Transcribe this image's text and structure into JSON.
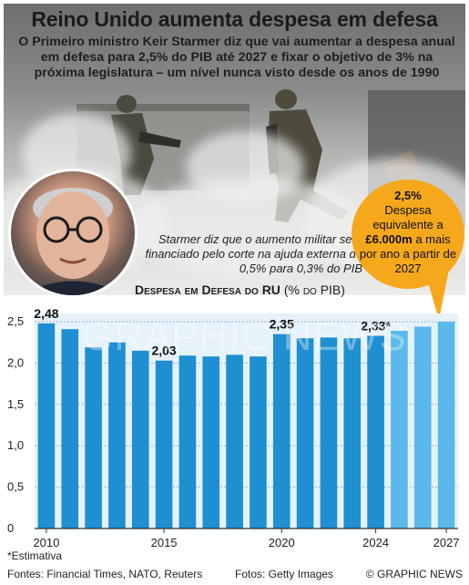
{
  "header": {
    "title": "Reino Unido aumenta despesa em defesa",
    "subtitle": "O Primeiro ministro Keir Starmer diz que vai aumentar a despesa anual em defesa para 2,5% do PIB até 2027 e fixar o objetivo de 3% na próxima legislatura – um nível nunca visto desde os anos de 1990"
  },
  "quote": "Starmer diz que o aumento militar será financiado pelo corte na ajuda externa de 0,5% para 0,3% do PIB",
  "bubble": {
    "line1": "2,5%",
    "line2": "Despesa equivalente a",
    "line3": "£6.000m",
    "line4": "a mais por ano a partir de 2027"
  },
  "chart_title": {
    "main": "Despesa em Defesa do RU",
    "unit": "(% do PIB)"
  },
  "watermark": "GRAPHIC NEWS",
  "colors": {
    "bar_actual": "#1e8fd0",
    "bar_future": "#5bb8ea",
    "bubble": "#f5a81c",
    "plot_bg": "#e6f2fa"
  },
  "chart_data": {
    "type": "bar",
    "title": "Despesa em Defesa do RU (% do PIB)",
    "x": [
      2010,
      2011,
      2012,
      2013,
      2014,
      2015,
      2016,
      2017,
      2018,
      2019,
      2020,
      2021,
      2022,
      2023,
      2024,
      2025,
      2026,
      2027
    ],
    "values": [
      2.48,
      2.41,
      2.19,
      2.25,
      2.15,
      2.03,
      2.09,
      2.08,
      2.1,
      2.08,
      2.35,
      2.3,
      2.31,
      2.3,
      2.33,
      2.39,
      2.44,
      2.5
    ],
    "projected_from": 2025,
    "labels": [
      {
        "x": 2010,
        "text": "2,48"
      },
      {
        "x": 2015,
        "text": "2,03"
      },
      {
        "x": 2020,
        "text": "2,35"
      },
      {
        "x": 2024,
        "text": "2,33*"
      }
    ],
    "ylim": [
      0,
      2.6
    ],
    "yticks": [
      "0",
      "0,5",
      "1,0",
      "1,5",
      "2,0",
      "2,5"
    ],
    "yticks_values": [
      0,
      0.5,
      1.0,
      1.5,
      2.0,
      2.5
    ],
    "xtick_labels": [
      "2010",
      "2015",
      "2020",
      "2024",
      "2027"
    ],
    "xtick_years": [
      2010,
      2015,
      2020,
      2024,
      2027
    ],
    "grid": true
  },
  "footer": {
    "footnote": "*Estimativa",
    "sources": "Fontes: Financial Times, NATO, Reuters",
    "photos": "Fotos: Getty Images",
    "credit": "© GRAPHIC NEWS"
  }
}
